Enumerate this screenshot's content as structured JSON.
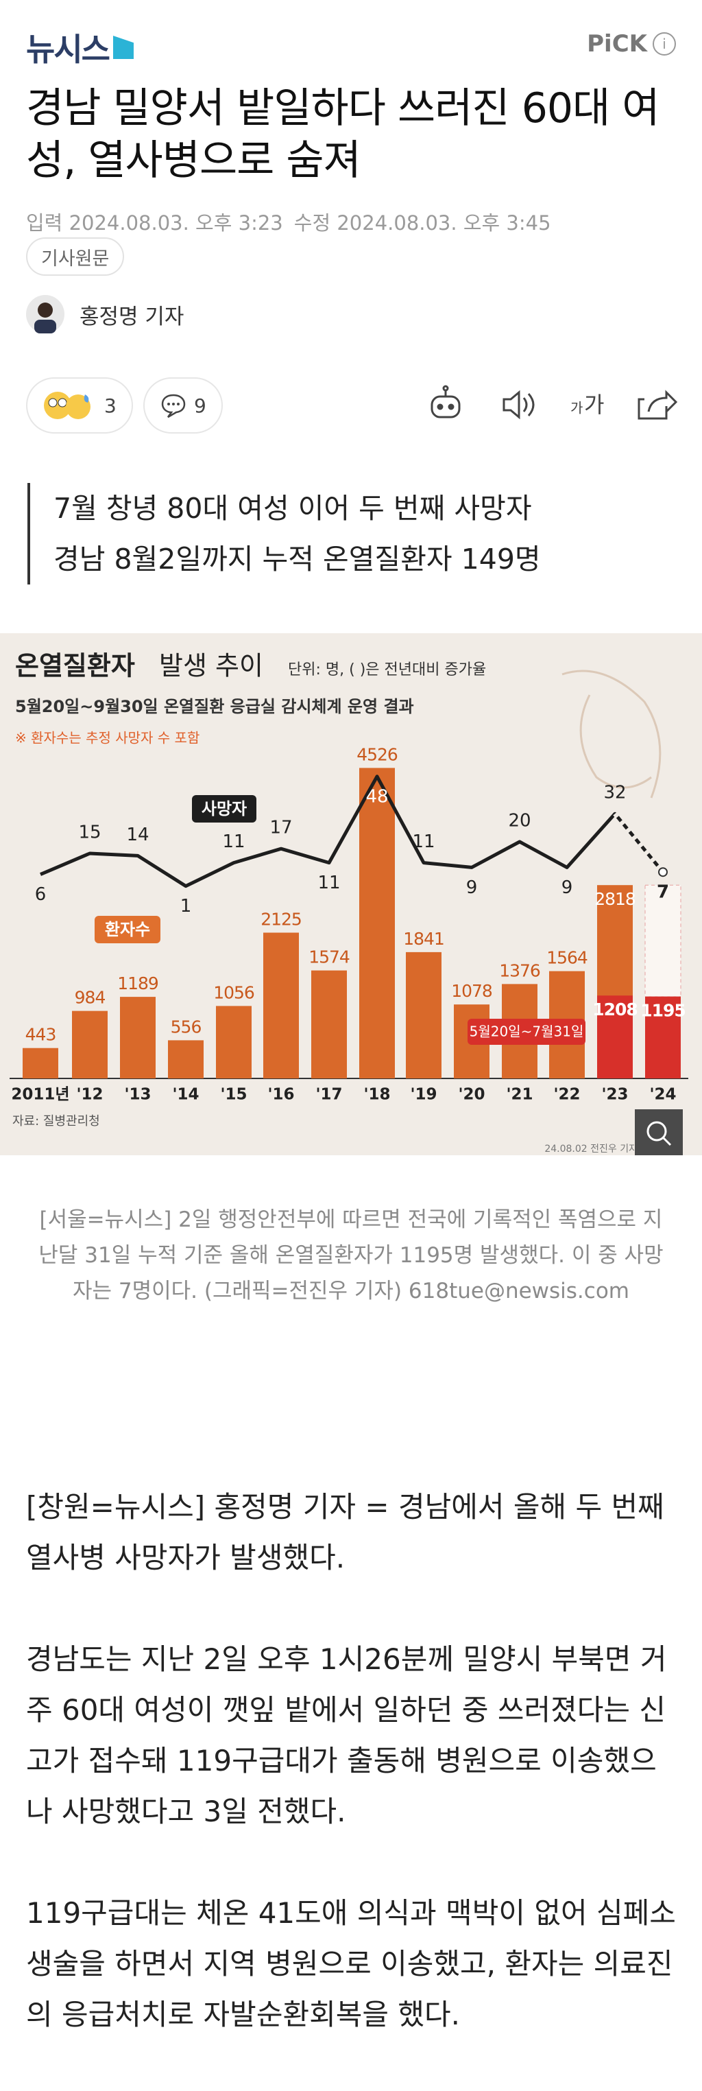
{
  "header": {
    "logo": "뉴시스",
    "pick": "PiCK"
  },
  "article": {
    "title": "경남 밀양서 밭일하다 쓰러진 60대 여성, 열사병으로 숨져",
    "published": "입력 2024.08.03. 오후 3:23",
    "modified": "수정 2024.08.03. 오후 3:45",
    "original_button": "기사원문",
    "reporter": "홍정명 기자",
    "reaction_count": 3,
    "comment_count": 9,
    "subheadings": [
      "7월 창녕 80대 여성 이어 두 번째 사망자",
      "경남 8월2일까지 누적 온열질환자 149명"
    ],
    "caption": "[서울=뉴시스] 2일 행정안전부에 따르면 전국에 기록적인 폭염으로 지난달 31일 누적 기준 올해 온열질환자가 1195명 발생했다. 이 중 사망자는 7명이다. (그래픽=전진우 기자) 618tue@newsis.com",
    "paragraphs": [
      "[창원=뉴시스] 홍정명 기자 = 경남에서 올해 두 번째 열사병 사망자가 발생했다.",
      "경남도는 지난 2일 오후 1시26분께 밀양시 부북면 거주 60대 여성이 깻잎 밭에서 일하던 중 쓰러졌다는 신고가 접수돼 119구급대가 출동해 병원으로 이송했으나 사망했다고 3일 전했다.",
      "119구급대는 체온 41도애 의식과 맥박이 없어 심페소생술을 하면서 지역 병원으로 이송했고, 환자는 의료진의 응급처치로 자발순환회복을 했다."
    ]
  },
  "graphic": {
    "title": "온열질환자",
    "title_rest": "발생 추이",
    "unit": "단위: 명, ( )은 전년대비 증가율",
    "subtitle": "5월20일~9월30일 온열질환 응급실 감시체계 운영 결과",
    "note": "※ 환자수는 추정 사망자 수 포함",
    "deaths_label": "사망자",
    "patients_label": "환자수",
    "period_label": "5월20일~7월31일",
    "source": "자료: 질병관리청",
    "credit": "24.08.02 전진우 기자",
    "categories": [
      "2011년",
      "'12",
      "'13",
      "'14",
      "'15",
      "'16",
      "'17",
      "'18",
      "'19",
      "'20",
      "'21",
      "'22",
      "'23",
      "'24"
    ],
    "patients": [
      443,
      984,
      1189,
      556,
      1056,
      2125,
      1574,
      4526,
      1841,
      1078,
      1376,
      1564,
      2818,
      null
    ],
    "period_patients": [
      null,
      null,
      null,
      null,
      null,
      null,
      null,
      null,
      null,
      null,
      null,
      null,
      1208,
      1195
    ],
    "deaths": [
      6,
      15,
      14,
      1,
      11,
      17,
      11,
      48,
      11,
      9,
      20,
      9,
      32,
      7
    ],
    "bar_color": "#d9692a",
    "period_color": "#d7302a",
    "line_color": "#1e1e1e"
  }
}
